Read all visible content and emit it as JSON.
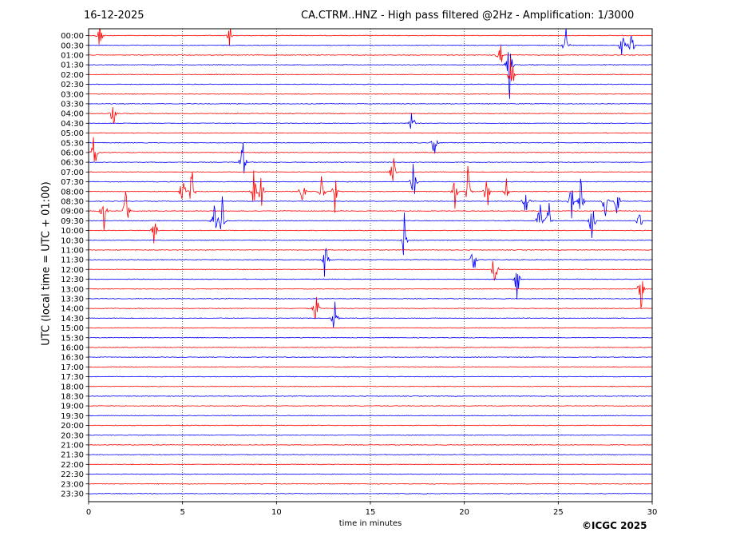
{
  "header": {
    "date": "16-12-2025",
    "title": "CA.CTRM..HNZ - High pass filtered @2Hz - Amplification: 1/3000"
  },
  "footer": {
    "copyright": "©ICGC 2025"
  },
  "chart_data": {
    "type": "line",
    "title": "CA.CTRM..HNZ - High pass filtered @2Hz - Amplification: 1/3000",
    "xlabel": "time in minutes",
    "ylabel": "UTC (local time = UTC + 01:00)",
    "xlim": [
      0,
      30
    ],
    "x_ticks": [
      0,
      5,
      10,
      15,
      20,
      25,
      30
    ],
    "grid": "vertical dotted at each x tick",
    "colors": {
      "even_trace": "#ff0000",
      "odd_trace": "#0000ff"
    },
    "rows": [
      "00:00",
      "00:30",
      "01:00",
      "01:30",
      "02:00",
      "02:30",
      "03:00",
      "03:30",
      "04:00",
      "04:30",
      "05:00",
      "05:30",
      "06:00",
      "06:30",
      "07:00",
      "07:30",
      "08:00",
      "08:30",
      "09:00",
      "09:30",
      "10:00",
      "10:30",
      "11:00",
      "11:30",
      "12:00",
      "12:30",
      "13:00",
      "13:30",
      "14:00",
      "14:30",
      "15:00",
      "15:30",
      "16:00",
      "16:30",
      "17:00",
      "17:30",
      "18:00",
      "18:30",
      "19:00",
      "19:30",
      "20:00",
      "20:30",
      "21:00",
      "21:30",
      "22:00",
      "22:30",
      "23:00",
      "23:30"
    ],
    "events": [
      {
        "row": 0,
        "t": 0.6,
        "amp": 2.2
      },
      {
        "row": 0,
        "t": 7.5,
        "amp": 2.0
      },
      {
        "row": 1,
        "t": 25.4,
        "amp": 2.8
      },
      {
        "row": 1,
        "t": 28.4,
        "amp": 3.0
      },
      {
        "row": 1,
        "t": 28.9,
        "amp": 3.0
      },
      {
        "row": 2,
        "t": 21.9,
        "amp": 3.2
      },
      {
        "row": 3,
        "t": 22.4,
        "amp": 4.5
      },
      {
        "row": 4,
        "t": 22.5,
        "amp": 4.0
      },
      {
        "row": 8,
        "t": 1.3,
        "amp": 2.5
      },
      {
        "row": 9,
        "t": 17.2,
        "amp": 2.6
      },
      {
        "row": 11,
        "t": 18.4,
        "amp": 2.0
      },
      {
        "row": 12,
        "t": 0.3,
        "amp": 3.0
      },
      {
        "row": 13,
        "t": 8.2,
        "amp": 3.6
      },
      {
        "row": 14,
        "t": 16.2,
        "amp": 2.6
      },
      {
        "row": 15,
        "t": 17.3,
        "amp": 3.0
      },
      {
        "row": 16,
        "t": 5.0,
        "amp": 3.0
      },
      {
        "row": 16,
        "t": 5.5,
        "amp": 3.2
      },
      {
        "row": 16,
        "t": 8.8,
        "amp": 3.0
      },
      {
        "row": 16,
        "t": 9.2,
        "amp": 3.0
      },
      {
        "row": 16,
        "t": 11.4,
        "amp": 3.4
      },
      {
        "row": 16,
        "t": 12.4,
        "amp": 3.4
      },
      {
        "row": 16,
        "t": 13.1,
        "amp": 2.8
      },
      {
        "row": 16,
        "t": 19.5,
        "amp": 3.2
      },
      {
        "row": 16,
        "t": 20.2,
        "amp": 3.4
      },
      {
        "row": 16,
        "t": 21.2,
        "amp": 3.4
      },
      {
        "row": 16,
        "t": 22.2,
        "amp": 3.0
      },
      {
        "row": 17,
        "t": 23.3,
        "amp": 3.2
      },
      {
        "row": 17,
        "t": 25.7,
        "amp": 3.2
      },
      {
        "row": 17,
        "t": 26.2,
        "amp": 3.0
      },
      {
        "row": 17,
        "t": 27.5,
        "amp": 3.2
      },
      {
        "row": 17,
        "t": 28.1,
        "amp": 3.0
      },
      {
        "row": 18,
        "t": 0.8,
        "amp": 3.0
      },
      {
        "row": 18,
        "t": 2.0,
        "amp": 3.2
      },
      {
        "row": 19,
        "t": 6.7,
        "amp": 3.4
      },
      {
        "row": 19,
        "t": 7.1,
        "amp": 3.2
      },
      {
        "row": 19,
        "t": 24.0,
        "amp": 3.4
      },
      {
        "row": 19,
        "t": 24.5,
        "amp": 3.0
      },
      {
        "row": 19,
        "t": 26.8,
        "amp": 3.6
      },
      {
        "row": 19,
        "t": 29.3,
        "amp": 3.0
      },
      {
        "row": 20,
        "t": 3.5,
        "amp": 3.0
      },
      {
        "row": 21,
        "t": 16.8,
        "amp": 3.0
      },
      {
        "row": 23,
        "t": 12.6,
        "amp": 3.2
      },
      {
        "row": 23,
        "t": 20.5,
        "amp": 3.2
      },
      {
        "row": 24,
        "t": 21.6,
        "amp": 3.6
      },
      {
        "row": 25,
        "t": 22.8,
        "amp": 3.4
      },
      {
        "row": 26,
        "t": 29.4,
        "amp": 3.0
      },
      {
        "row": 28,
        "t": 12.1,
        "amp": 3.0
      },
      {
        "row": 29,
        "t": 13.1,
        "amp": 3.0
      }
    ]
  }
}
